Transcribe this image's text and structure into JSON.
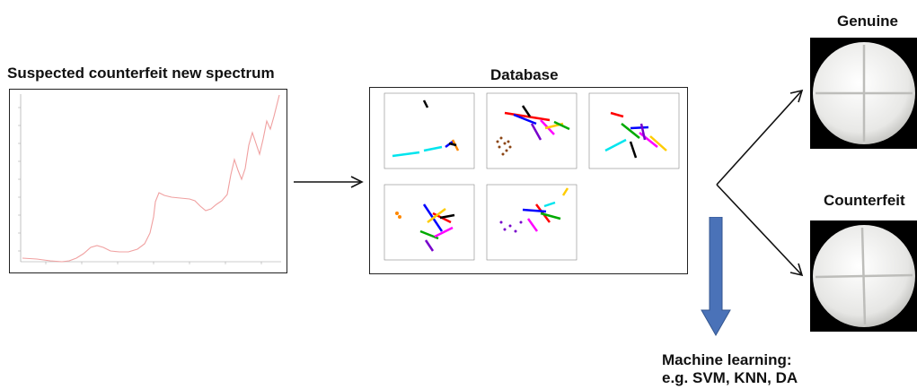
{
  "spectrum_panel": {
    "title": "Suspected counterfeit new spectrum"
  },
  "database_panel": {
    "title": "Database"
  },
  "outcomes": {
    "genuine_label": "Genuine",
    "counterfeit_label": "Counterfeit"
  },
  "method": {
    "line1": "Machine learning:",
    "line2": "e.g. SVM, KNN, DA"
  },
  "colors": {
    "spectrum_line": "#f0a0a0",
    "arrow_down": "#4a72b8",
    "arrow_line": "#111111",
    "scatter_colors": [
      "#00e5ee",
      "#ff0000",
      "#0000ff",
      "#ff00ff",
      "#00aa00",
      "#ffcc00",
      "#8b4513",
      "#000000",
      "#ff8800",
      "#7700cc"
    ]
  }
}
